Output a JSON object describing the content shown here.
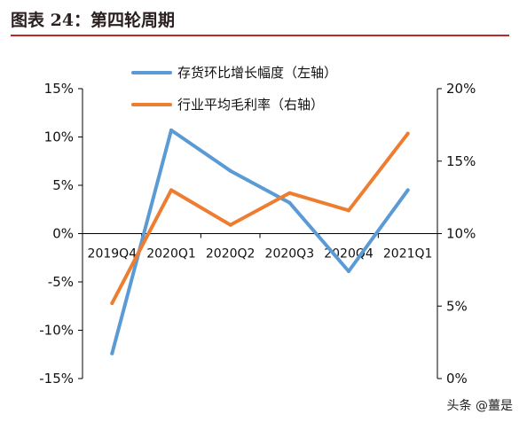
{
  "header": {
    "title": "图表 24：第四轮周期"
  },
  "watermark": "头条 @薑是",
  "colors": {
    "title_rule": "#b8272c",
    "series_blue": "#5b9bd5",
    "series_orange": "#ed7d31",
    "axis": "#000000"
  },
  "chart_data": {
    "type": "line",
    "title": "",
    "categories": [
      "2019Q4",
      "2020Q1",
      "2020Q2",
      "2020Q3",
      "2020Q4",
      "2021Q1"
    ],
    "series": [
      {
        "name": "存货环比增长幅度（左轴）",
        "axis": "left",
        "color": "#5b9bd5",
        "values": [
          -12.4,
          10.7,
          6.5,
          3.2,
          -3.9,
          4.5
        ]
      },
      {
        "name": "行业平均毛利率（右轴）",
        "axis": "right",
        "color": "#ed7d31",
        "values": [
          5.2,
          13.0,
          10.6,
          12.8,
          11.6,
          16.9
        ]
      }
    ],
    "left_axis": {
      "ylim": [
        -15,
        15
      ],
      "ticks": [
        -15,
        -10,
        -5,
        0,
        5,
        10,
        15
      ],
      "tick_labels": [
        "-15%",
        "-10%",
        "-5%",
        "0%",
        "5%",
        "10%",
        "15%"
      ]
    },
    "right_axis": {
      "ylim": [
        0,
        20
      ],
      "ticks": [
        0,
        5,
        10,
        15,
        20
      ],
      "tick_labels": [
        "0%",
        "5%",
        "10%",
        "15%",
        "20%"
      ]
    },
    "grid": false,
    "legend": "top-center"
  }
}
